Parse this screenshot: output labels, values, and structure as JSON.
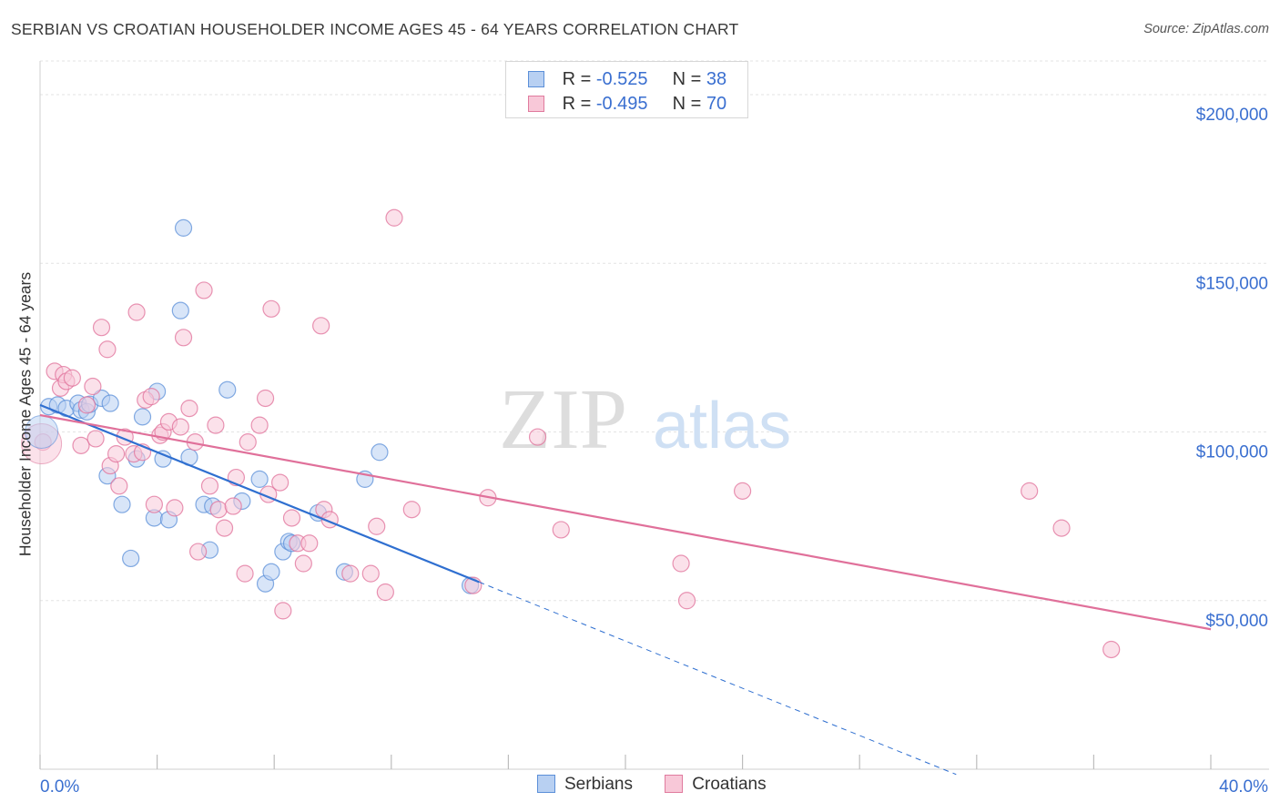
{
  "title": "SERBIAN VS CROATIAN HOUSEHOLDER INCOME AGES 45 - 64 YEARS CORRELATION CHART",
  "source": "Source: ZipAtlas.com",
  "watermark": {
    "zip": "ZIP",
    "atlas": "atlas"
  },
  "legend": {
    "r_label": "R =",
    "n_label": "N =",
    "rows": [
      {
        "name": "Serbians",
        "r": "-0.525",
        "n": "38",
        "fill": "#b8d0f2",
        "stroke": "#5b8fd8"
      },
      {
        "name": "Croatians",
        "r": "-0.495",
        "n": "70",
        "fill": "#f8c8d8",
        "stroke": "#e07b9e"
      }
    ]
  },
  "chart_data": {
    "type": "scatter",
    "title": "SERBIAN VS CROATIAN HOUSEHOLDER INCOME AGES 45 - 64 YEARS CORRELATION CHART",
    "xlabel": "",
    "ylabel": "Householder Income Ages 45 - 64 years",
    "xlim": [
      0,
      40
    ],
    "ylim": [
      0,
      210000
    ],
    "x_tick_labels": [
      "0.0%",
      "40.0%"
    ],
    "y_ticks": [
      50000,
      100000,
      150000,
      200000
    ],
    "y_tick_labels": [
      "$50,000",
      "$100,000",
      "$150,000",
      "$200,000"
    ],
    "grid": true,
    "series": [
      {
        "name": "Serbians",
        "color": "#5b8fd8",
        "fill": "#b8d0f2",
        "points": [
          [
            0.3,
            107500
          ],
          [
            0.6,
            108000
          ],
          [
            0.9,
            107000
          ],
          [
            1.3,
            108500
          ],
          [
            1.4,
            106500
          ],
          [
            1.6,
            106000
          ],
          [
            1.7,
            108200
          ],
          [
            2.1,
            110000
          ],
          [
            2.4,
            108500
          ],
          [
            2.3,
            87000
          ],
          [
            2.8,
            78500
          ],
          [
            3.1,
            62500
          ],
          [
            3.3,
            92000
          ],
          [
            3.5,
            104500
          ],
          [
            3.9,
            74500
          ],
          [
            4.0,
            112000
          ],
          [
            4.2,
            92000
          ],
          [
            4.4,
            74000
          ],
          [
            4.8,
            136000
          ],
          [
            4.9,
            160500
          ],
          [
            5.1,
            92500
          ],
          [
            5.6,
            78500
          ],
          [
            5.8,
            65000
          ],
          [
            5.9,
            78000
          ],
          [
            6.4,
            112500
          ],
          [
            6.9,
            79500
          ],
          [
            7.5,
            86000
          ],
          [
            7.7,
            55000
          ],
          [
            7.9,
            58500
          ],
          [
            8.3,
            64500
          ],
          [
            8.5,
            67500
          ],
          [
            8.6,
            67000
          ],
          [
            9.5,
            76000
          ],
          [
            10.4,
            58500
          ],
          [
            11.1,
            86000
          ],
          [
            11.6,
            94000
          ],
          [
            14.7,
            54500
          ]
        ],
        "trend": {
          "x0": 0,
          "y0": 108000,
          "x1": 15,
          "y1": 55500,
          "dash_to_x": 31.3
        }
      },
      {
        "name": "Croatians",
        "color": "#e0709a",
        "fill": "#f8c8d8",
        "points": [
          [
            0.1,
            97000
          ],
          [
            0.5,
            118000
          ],
          [
            0.7,
            113000
          ],
          [
            0.8,
            117000
          ],
          [
            0.9,
            115000
          ],
          [
            1.1,
            116000
          ],
          [
            1.4,
            96000
          ],
          [
            1.6,
            108000
          ],
          [
            1.8,
            113500
          ],
          [
            1.9,
            98000
          ],
          [
            2.1,
            131000
          ],
          [
            2.3,
            124500
          ],
          [
            2.4,
            90000
          ],
          [
            2.6,
            93500
          ],
          [
            2.7,
            84000
          ],
          [
            2.9,
            98500
          ],
          [
            3.2,
            93500
          ],
          [
            3.3,
            135500
          ],
          [
            3.5,
            94000
          ],
          [
            3.6,
            109500
          ],
          [
            3.8,
            110500
          ],
          [
            3.9,
            78500
          ],
          [
            4.1,
            99000
          ],
          [
            4.2,
            100000
          ],
          [
            4.4,
            103000
          ],
          [
            4.6,
            77500
          ],
          [
            4.8,
            101500
          ],
          [
            4.9,
            128000
          ],
          [
            5.1,
            107000
          ],
          [
            5.3,
            97000
          ],
          [
            5.4,
            64500
          ],
          [
            5.6,
            142000
          ],
          [
            5.8,
            84000
          ],
          [
            6.0,
            102000
          ],
          [
            6.1,
            77000
          ],
          [
            6.3,
            71500
          ],
          [
            6.6,
            78000
          ],
          [
            6.7,
            86500
          ],
          [
            7.0,
            58000
          ],
          [
            7.1,
            97000
          ],
          [
            7.5,
            102000
          ],
          [
            7.7,
            110000
          ],
          [
            7.8,
            81500
          ],
          [
            7.9,
            136500
          ],
          [
            8.2,
            85000
          ],
          [
            8.3,
            47000
          ],
          [
            8.6,
            74500
          ],
          [
            8.8,
            67000
          ],
          [
            9.0,
            61000
          ],
          [
            9.2,
            67000
          ],
          [
            9.6,
            131500
          ],
          [
            9.7,
            77000
          ],
          [
            9.9,
            74000
          ],
          [
            10.6,
            58000
          ],
          [
            11.3,
            58000
          ],
          [
            11.5,
            72000
          ],
          [
            11.8,
            52500
          ],
          [
            12.1,
            163500
          ],
          [
            12.7,
            77000
          ],
          [
            14.8,
            54500
          ],
          [
            15.3,
            80500
          ],
          [
            17.0,
            98500
          ],
          [
            17.8,
            71000
          ],
          [
            21.9,
            61000
          ],
          [
            22.1,
            50000
          ],
          [
            24.0,
            82500
          ],
          [
            33.8,
            82500
          ],
          [
            34.9,
            71500
          ],
          [
            36.6,
            35500
          ]
        ],
        "trend": {
          "x0": 0,
          "y0": 105000,
          "x1": 40,
          "y1": 41500
        }
      }
    ]
  }
}
